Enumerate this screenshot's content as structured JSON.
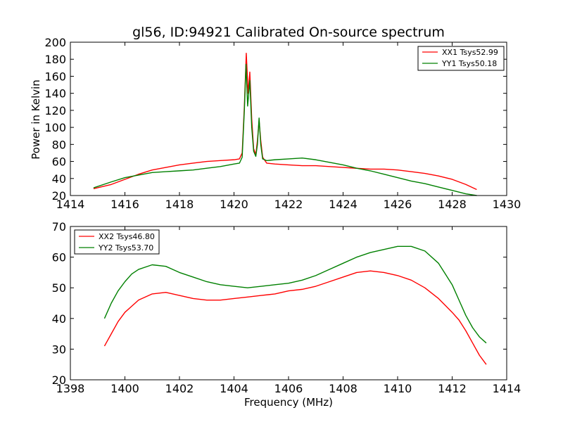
{
  "chart_data": [
    {
      "type": "line",
      "title": "gl56, ID:94921 Calibrated On-source spectrum",
      "xlabel": "",
      "ylabel": "Power in Kelvin",
      "xlim": [
        1414,
        1430
      ],
      "ylim": [
        20,
        200
      ],
      "xticks": [
        1414,
        1416,
        1418,
        1420,
        1422,
        1424,
        1426,
        1428,
        1430
      ],
      "yticks": [
        20,
        40,
        60,
        80,
        100,
        120,
        140,
        160,
        180,
        200
      ],
      "grid": false,
      "legend_position": "top-right",
      "series": [
        {
          "name": "XX1 Tsys52.99",
          "color": "#ff0000",
          "x": [
            1414.85,
            1415.5,
            1416,
            1416.5,
            1417,
            1417.5,
            1418,
            1418.5,
            1419,
            1419.5,
            1420,
            1420.2,
            1420.3,
            1420.38,
            1420.45,
            1420.52,
            1420.58,
            1420.65,
            1420.72,
            1420.8,
            1420.86,
            1420.92,
            1420.98,
            1421.05,
            1421.2,
            1421.5,
            1422,
            1422.5,
            1423,
            1423.5,
            1424,
            1424.5,
            1425,
            1425.5,
            1426,
            1426.5,
            1427,
            1427.5,
            1428,
            1428.5,
            1428.9
          ],
          "values": [
            28,
            33,
            39,
            45,
            50,
            53,
            56,
            58,
            60,
            61,
            62,
            63,
            70,
            125,
            187,
            140,
            165,
            110,
            75,
            68,
            85,
            108,
            85,
            65,
            58,
            57,
            56,
            55,
            55,
            54,
            53,
            52,
            51,
            51,
            50,
            48,
            46,
            43,
            39,
            33,
            27
          ]
        },
        {
          "name": "YY1 Tsys50.18",
          "color": "#008000",
          "x": [
            1414.85,
            1415.5,
            1416,
            1416.5,
            1417,
            1417.5,
            1418,
            1418.5,
            1419,
            1419.5,
            1420,
            1420.2,
            1420.3,
            1420.38,
            1420.44,
            1420.5,
            1420.58,
            1420.65,
            1420.72,
            1420.8,
            1420.86,
            1420.92,
            1420.98,
            1421.05,
            1421.2,
            1421.5,
            1422,
            1422.5,
            1423,
            1423.5,
            1424,
            1424.5,
            1425,
            1425.5,
            1426,
            1426.5,
            1427,
            1427.5,
            1428,
            1428.5,
            1428.9
          ],
          "values": [
            29,
            36,
            41,
            44,
            47,
            48,
            49,
            50,
            52,
            54,
            57,
            58,
            65,
            120,
            174,
            125,
            155,
            100,
            72,
            66,
            80,
            111,
            80,
            63,
            61,
            62,
            63,
            64,
            62,
            59,
            56,
            52,
            49,
            45,
            41,
            37,
            34,
            30,
            26,
            22,
            20
          ]
        }
      ]
    },
    {
      "type": "line",
      "title": "",
      "xlabel": "Frequency (MHz)",
      "ylabel": "",
      "xlim": [
        1398,
        1414
      ],
      "ylim": [
        20,
        70
      ],
      "xticks": [
        1398,
        1400,
        1402,
        1404,
        1406,
        1408,
        1410,
        1412,
        1414
      ],
      "yticks": [
        20,
        30,
        40,
        50,
        60,
        70
      ],
      "grid": false,
      "legend_position": "top-left",
      "series": [
        {
          "name": "XX2 Tsys46.80",
          "color": "#ff0000",
          "x": [
            1399.25,
            1399.5,
            1399.75,
            1400,
            1400.25,
            1400.5,
            1401,
            1401.5,
            1402,
            1402.5,
            1403,
            1403.5,
            1404,
            1404.5,
            1405,
            1405.5,
            1406,
            1406.5,
            1407,
            1407.5,
            1408,
            1408.5,
            1409,
            1409.5,
            1410,
            1410.5,
            1411,
            1411.5,
            1412,
            1412.25,
            1412.5,
            1412.75,
            1413,
            1413.25
          ],
          "values": [
            31,
            35,
            39,
            42,
            44,
            46,
            48,
            48.5,
            47.5,
            46.5,
            46,
            46,
            46.5,
            47,
            47.5,
            48,
            49,
            49.5,
            50.5,
            52,
            53.5,
            55,
            55.5,
            55,
            54,
            52.5,
            50,
            46.5,
            42,
            39.5,
            36,
            32,
            28,
            25
          ]
        },
        {
          "name": "YY2 Tsys53.70",
          "color": "#008000",
          "x": [
            1399.25,
            1399.5,
            1399.75,
            1400,
            1400.25,
            1400.5,
            1401,
            1401.5,
            1402,
            1402.5,
            1403,
            1403.5,
            1404,
            1404.5,
            1405,
            1405.5,
            1406,
            1406.5,
            1407,
            1407.5,
            1408,
            1408.5,
            1409,
            1409.5,
            1410,
            1410.5,
            1411,
            1411.5,
            1412,
            1412.25,
            1412.5,
            1412.75,
            1413,
            1413.25
          ],
          "values": [
            40,
            45,
            49,
            52,
            54.5,
            56,
            57.5,
            57,
            55,
            53.5,
            52,
            51,
            50.5,
            50,
            50.5,
            51,
            51.5,
            52.5,
            54,
            56,
            58,
            60,
            61.5,
            62.5,
            63.5,
            63.5,
            62,
            58,
            51,
            46,
            41,
            37,
            34,
            32
          ]
        }
      ]
    }
  ]
}
